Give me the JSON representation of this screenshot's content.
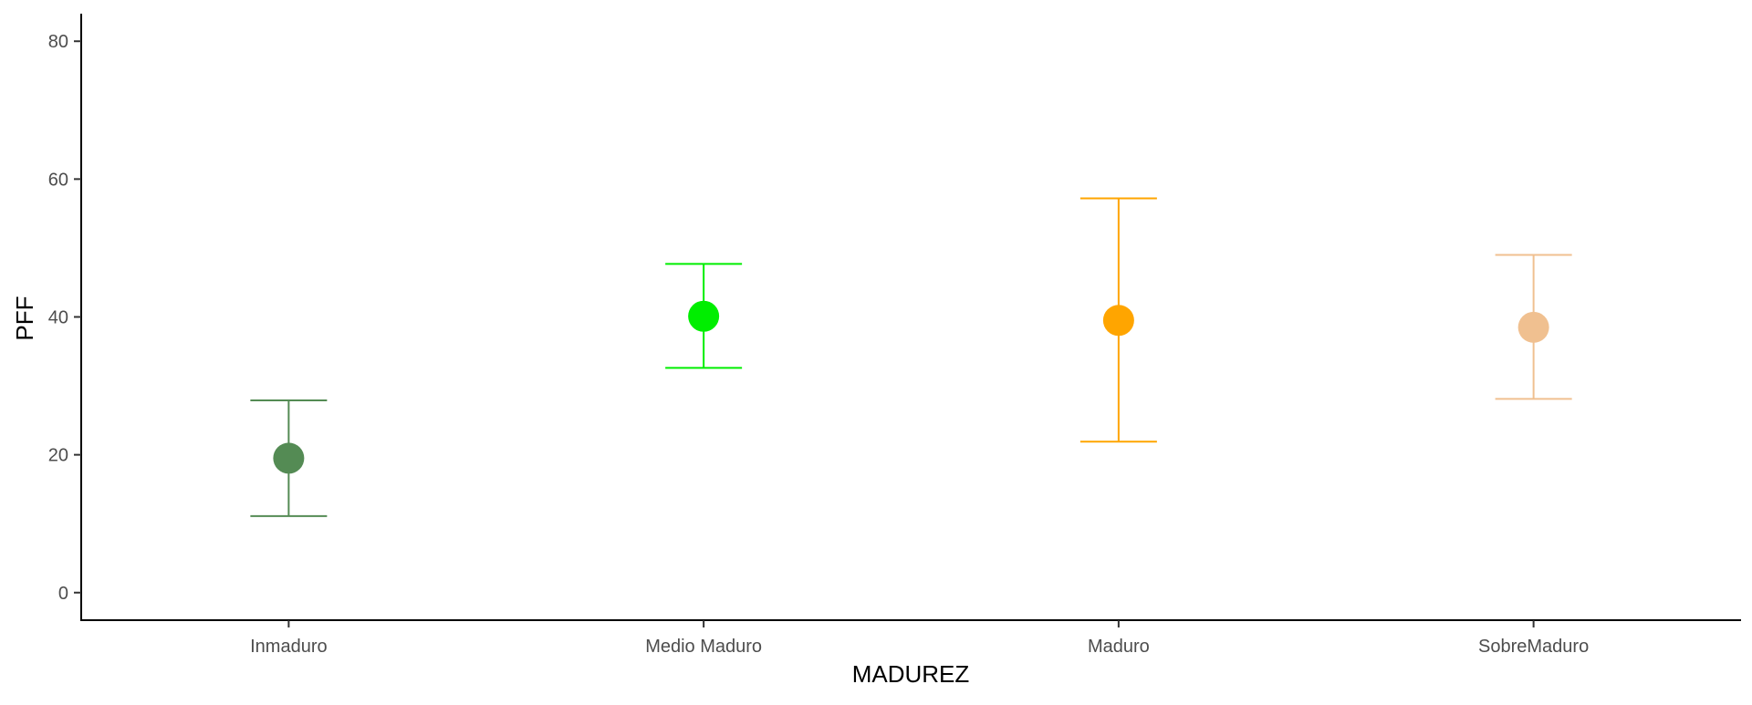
{
  "chart_data": {
    "type": "scatter",
    "title": "",
    "xlabel": "MADUREZ",
    "ylabel": "PFF",
    "ylim": [
      -4,
      84
    ],
    "y_ticks": [
      0,
      20,
      40,
      60,
      80
    ],
    "grid": false,
    "legend": "none",
    "categories": [
      "Inmaduro",
      "Medio Maduro",
      "Maduro",
      "SobreMaduro"
    ],
    "points": [
      {
        "category": "Inmaduro",
        "mean": 19.5,
        "lower": 11.1,
        "upper": 27.9,
        "point_color": "#548B54",
        "bar_color": "#548B54"
      },
      {
        "category": "Medio Maduro",
        "mean": 40.1,
        "lower": 32.6,
        "upper": 47.7,
        "point_color": "#00EE00",
        "bar_color": "#00EE00"
      },
      {
        "category": "Maduro",
        "mean": 39.5,
        "lower": 21.9,
        "upper": 57.2,
        "point_color": "#FFA500",
        "bar_color": "#FFA500"
      },
      {
        "category": "SobreMaduro",
        "mean": 38.5,
        "lower": 28.1,
        "upper": 49.0,
        "point_color": "#F0C090",
        "bar_color": "#F0C090"
      }
    ]
  }
}
